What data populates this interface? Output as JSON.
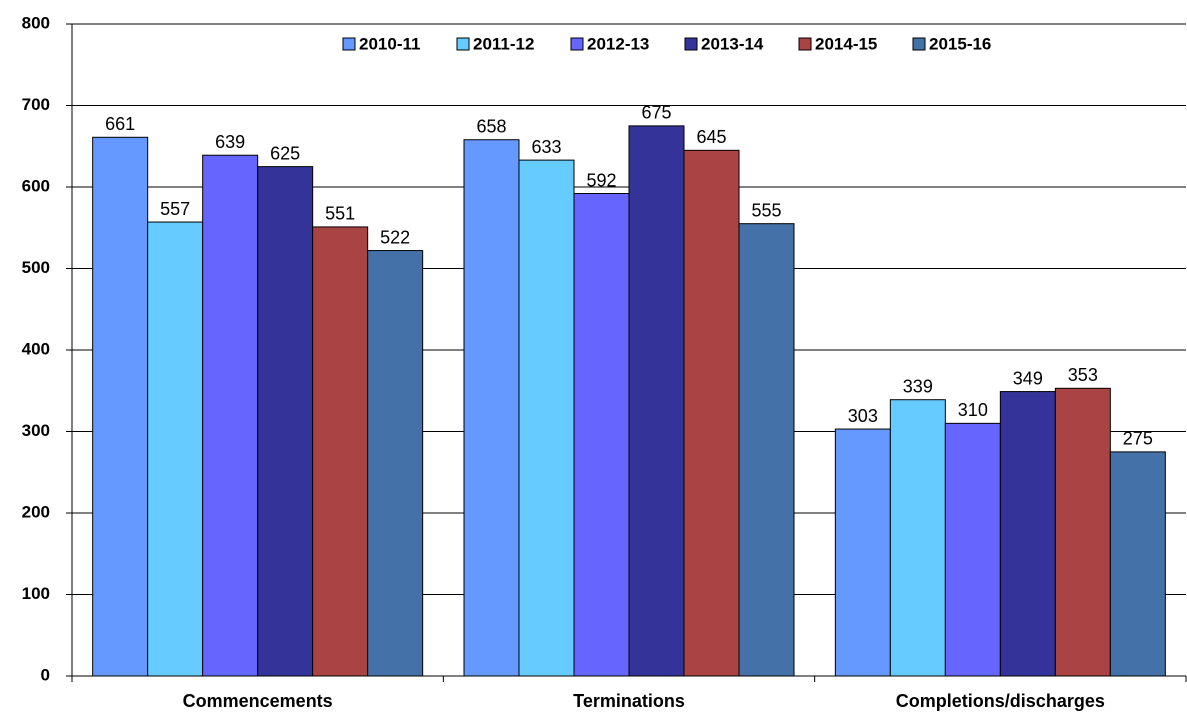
{
  "chart_data": {
    "type": "bar",
    "categories": [
      "Commencements",
      "Terminations",
      "Completions/discharges"
    ],
    "series": [
      {
        "name": "2010-11",
        "color": "#6699ff",
        "values": [
          661,
          658,
          303
        ]
      },
      {
        "name": "2011-12",
        "color": "#66ccff",
        "values": [
          557,
          633,
          339
        ]
      },
      {
        "name": "2012-13",
        "color": "#6666ff",
        "values": [
          639,
          592,
          310
        ]
      },
      {
        "name": "2013-14",
        "color": "#333399",
        "values": [
          625,
          675,
          349
        ]
      },
      {
        "name": "2014-15",
        "color": "#aa4444",
        "values": [
          551,
          645,
          353
        ]
      },
      {
        "name": "2015-16",
        "color": "#4472a8",
        "values": [
          522,
          555,
          275
        ]
      }
    ],
    "ylim": [
      0,
      800
    ],
    "yticks": [
      0,
      100,
      200,
      300,
      400,
      500,
      600,
      700,
      800
    ],
    "grid": true,
    "legend": "top"
  }
}
